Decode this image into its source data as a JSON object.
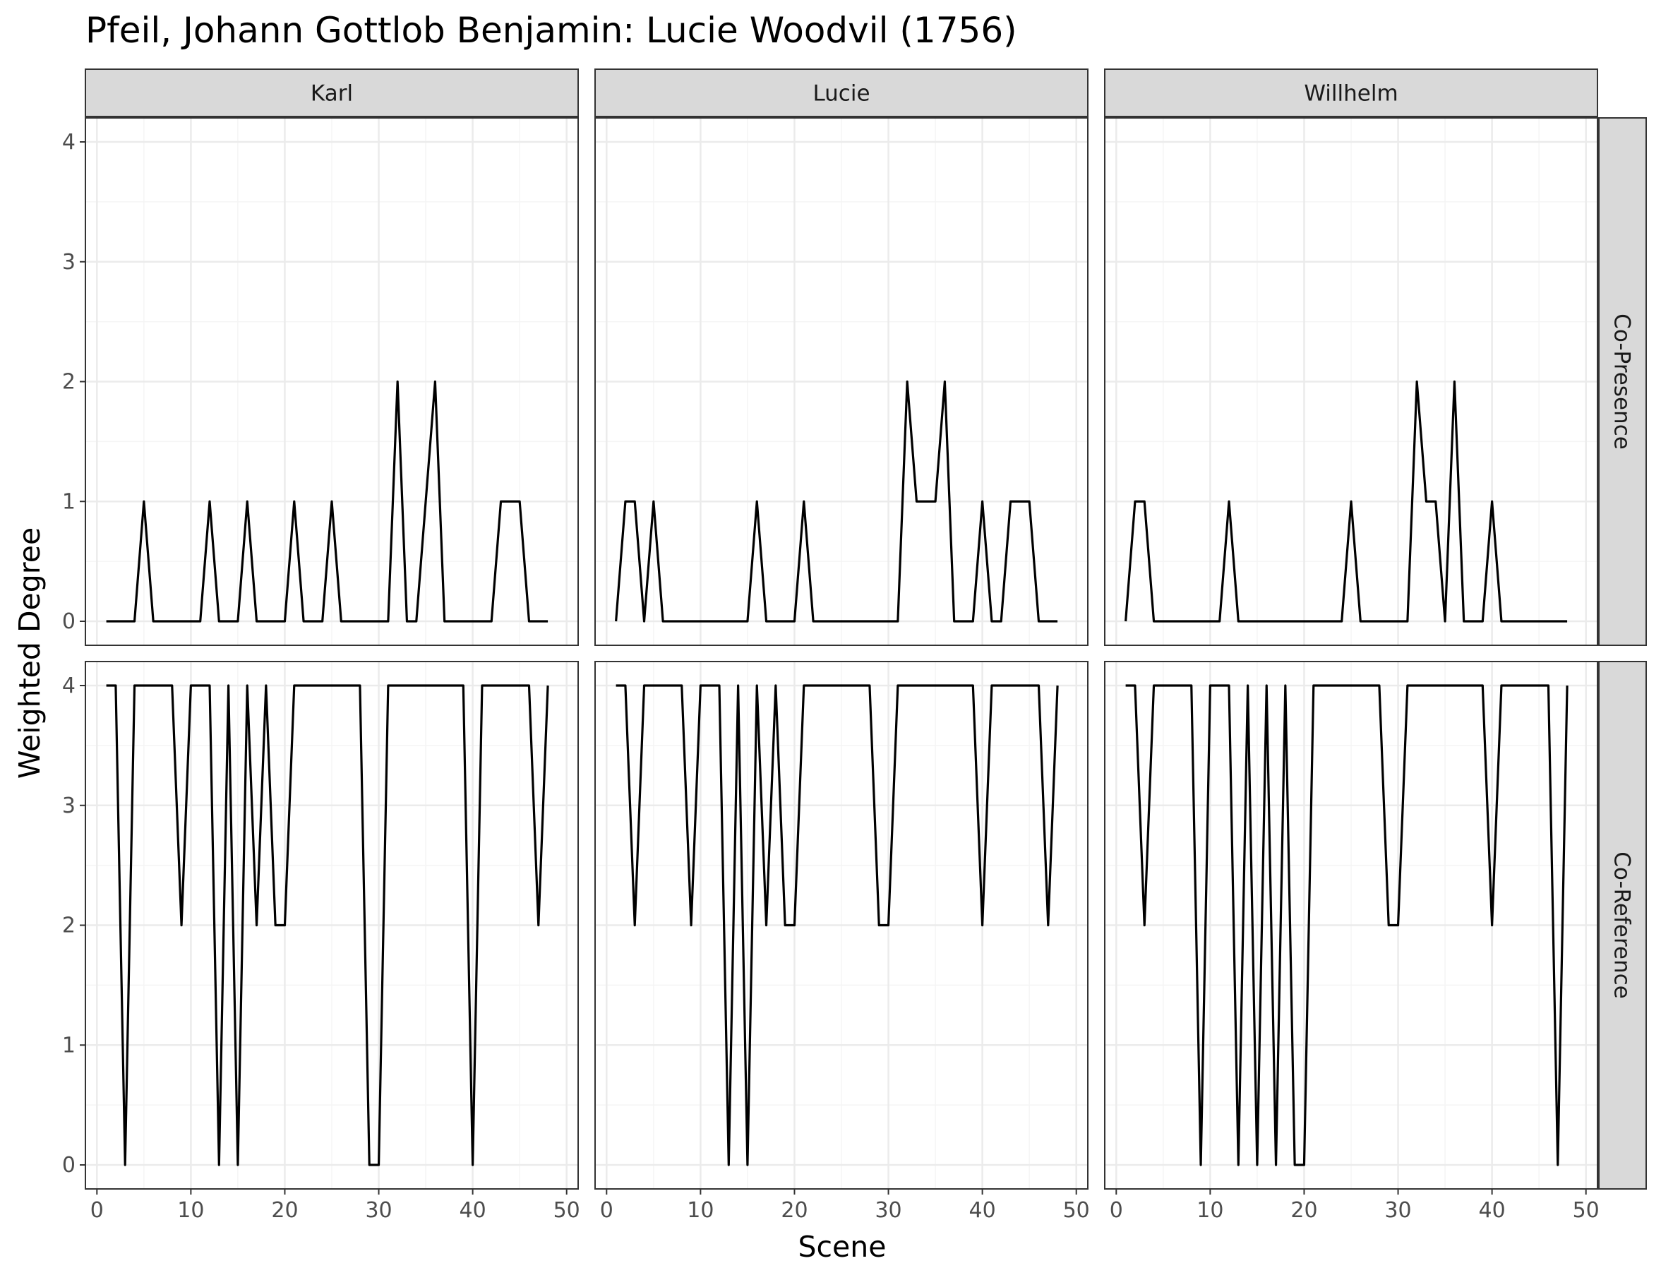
{
  "chart_data": {
    "type": "line",
    "title": "Pfeil, Johann Gottlob Benjamin: Lucie Woodvil (1756)",
    "xlabel": "Scene",
    "ylabel": "Weighted Degree",
    "xlim": [
      0,
      50
    ],
    "ylim": [
      0,
      4
    ],
    "x_ticks": [
      0,
      10,
      20,
      30,
      40,
      50
    ],
    "y_ticks": [
      0,
      1,
      2,
      3,
      4
    ],
    "columns": [
      "Karl",
      "Lucie",
      "Willhelm"
    ],
    "rows": [
      "Co-Presence",
      "Co-Reference"
    ],
    "x": [
      1,
      2,
      3,
      4,
      5,
      6,
      7,
      8,
      9,
      10,
      11,
      12,
      13,
      14,
      15,
      16,
      17,
      18,
      19,
      20,
      21,
      22,
      23,
      24,
      25,
      26,
      27,
      28,
      29,
      30,
      31,
      32,
      33,
      34,
      35,
      36,
      37,
      38,
      39,
      40,
      41,
      42,
      43,
      44,
      45,
      46,
      47,
      48
    ],
    "panels": [
      {
        "column": "Karl",
        "row": "Co-Presence",
        "values": [
          0,
          0,
          0,
          0,
          1,
          0,
          0,
          0,
          0,
          0,
          0,
          1,
          0,
          0,
          0,
          1,
          0,
          0,
          0,
          0,
          1,
          0,
          0,
          0,
          1,
          0,
          0,
          0,
          0,
          0,
          0,
          2,
          0,
          0,
          1,
          2,
          0,
          0,
          0,
          0,
          0,
          0,
          1,
          1,
          1,
          0,
          0,
          0
        ]
      },
      {
        "column": "Lucie",
        "row": "Co-Presence",
        "values": [
          0,
          1,
          1,
          0,
          1,
          0,
          0,
          0,
          0,
          0,
          0,
          0,
          0,
          0,
          0,
          1,
          0,
          0,
          0,
          0,
          1,
          0,
          0,
          0,
          0,
          0,
          0,
          0,
          0,
          0,
          0,
          2,
          1,
          1,
          1,
          2,
          0,
          0,
          0,
          1,
          0,
          0,
          1,
          1,
          1,
          0,
          0,
          0
        ]
      },
      {
        "column": "Willhelm",
        "row": "Co-Presence",
        "values": [
          0,
          1,
          1,
          0,
          0,
          0,
          0,
          0,
          0,
          0,
          0,
          1,
          0,
          0,
          0,
          0,
          0,
          0,
          0,
          0,
          0,
          0,
          0,
          0,
          1,
          0,
          0,
          0,
          0,
          0,
          0,
          2,
          1,
          1,
          0,
          2,
          0,
          0,
          0,
          1,
          0,
          0,
          0,
          0,
          0,
          0,
          0,
          0
        ]
      },
      {
        "column": "Karl",
        "row": "Co-Reference",
        "values": [
          4,
          4,
          0,
          4,
          4,
          4,
          4,
          4,
          2,
          4,
          4,
          4,
          0,
          4,
          0,
          4,
          2,
          4,
          2,
          2,
          4,
          4,
          4,
          4,
          4,
          4,
          4,
          4,
          0,
          0,
          4,
          4,
          4,
          4,
          4,
          4,
          4,
          4,
          4,
          0,
          4,
          4,
          4,
          4,
          4,
          4,
          2,
          4
        ]
      },
      {
        "column": "Lucie",
        "row": "Co-Reference",
        "values": [
          4,
          4,
          2,
          4,
          4,
          4,
          4,
          4,
          2,
          4,
          4,
          4,
          0,
          4,
          0,
          4,
          2,
          4,
          2,
          2,
          4,
          4,
          4,
          4,
          4,
          4,
          4,
          4,
          2,
          2,
          4,
          4,
          4,
          4,
          4,
          4,
          4,
          4,
          4,
          2,
          4,
          4,
          4,
          4,
          4,
          4,
          2,
          4
        ]
      },
      {
        "column": "Willhelm",
        "row": "Co-Reference",
        "values": [
          4,
          4,
          2,
          4,
          4,
          4,
          4,
          4,
          0,
          4,
          4,
          4,
          0,
          4,
          0,
          4,
          0,
          4,
          0,
          0,
          4,
          4,
          4,
          4,
          4,
          4,
          4,
          4,
          2,
          2,
          4,
          4,
          4,
          4,
          4,
          4,
          4,
          4,
          4,
          2,
          4,
          4,
          4,
          4,
          4,
          4,
          0,
          4
        ]
      }
    ]
  },
  "colors": {
    "line": "#000000",
    "strip_fill": "#d9d9d9",
    "grid_major": "#ebebeb",
    "grid_minor": "#f5f5f5",
    "panel_border": "#333333",
    "tick_text": "#4d4d4d"
  }
}
